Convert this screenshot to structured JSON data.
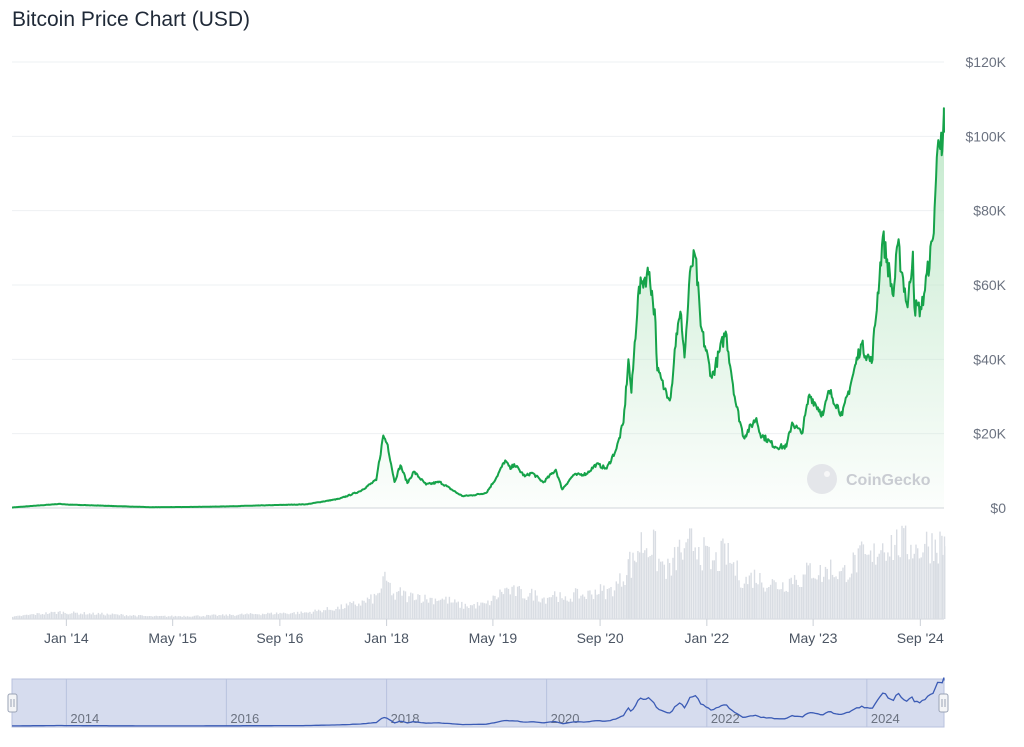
{
  "header": {
    "title": "Bitcoin Price Chart (USD)"
  },
  "watermark": "CoinGecko",
  "colors": {
    "line": "#16a34a",
    "area_top": "#bfe8c9",
    "volume": "#d9dde3",
    "navigator_fill": "#d6dcee",
    "navigator_line": "#3b5bb5"
  },
  "chart_data": {
    "type": "line",
    "title": "Bitcoin Price Chart (USD)",
    "xlabel": "",
    "ylabel": "",
    "ylim": [
      0,
      120000
    ],
    "yticks": [
      "$0",
      "$20K",
      "$40K",
      "$60K",
      "$80K",
      "$100K",
      "$120K"
    ],
    "ytick_values": [
      0,
      20000,
      40000,
      60000,
      80000,
      100000,
      120000
    ],
    "xticks": [
      "Jan '14",
      "May '15",
      "Sep '16",
      "Jan '18",
      "May '19",
      "Sep '20",
      "Jan '22",
      "May '23",
      "Sep '24"
    ],
    "xtick_dates": [
      "2014-01-01",
      "2015-05-01",
      "2016-09-01",
      "2018-01-01",
      "2019-05-01",
      "2020-09-01",
      "2022-01-01",
      "2023-05-01",
      "2024-09-01"
    ],
    "xlim": [
      "2013-04-28",
      "2024-12-18"
    ],
    "grid": true,
    "series": [
      {
        "values": [
          [
            "2013-04-28",
            135
          ],
          [
            "2013-11-30",
            1100
          ],
          [
            "2014-01-15",
            900
          ],
          [
            "2014-06-01",
            650
          ],
          [
            "2015-01-15",
            220
          ],
          [
            "2015-08-01",
            280
          ],
          [
            "2016-01-01",
            430
          ],
          [
            "2016-06-15",
            700
          ],
          [
            "2017-01-01",
            1000
          ],
          [
            "2017-06-01",
            2500
          ],
          [
            "2017-09-01",
            4500
          ],
          [
            "2017-11-15",
            7500
          ],
          [
            "2017-12-17",
            19500
          ],
          [
            "2018-01-06",
            17000
          ],
          [
            "2018-02-06",
            7000
          ],
          [
            "2018-03-05",
            11500
          ],
          [
            "2018-04-06",
            6700
          ],
          [
            "2018-05-05",
            9800
          ],
          [
            "2018-06-30",
            6300
          ],
          [
            "2018-09-01",
            7000
          ],
          [
            "2018-11-25",
            3800
          ],
          [
            "2018-12-15",
            3200
          ],
          [
            "2019-02-01",
            3450
          ],
          [
            "2019-04-01",
            4100
          ],
          [
            "2019-05-15",
            8000
          ],
          [
            "2019-06-26",
            12800
          ],
          [
            "2019-07-20",
            10500
          ],
          [
            "2019-08-06",
            11800
          ],
          [
            "2019-09-24",
            8500
          ],
          [
            "2019-10-26",
            9500
          ],
          [
            "2019-12-17",
            6900
          ],
          [
            "2020-02-12",
            10300
          ],
          [
            "2020-03-12",
            5000
          ],
          [
            "2020-05-01",
            8800
          ],
          [
            "2020-07-01",
            9200
          ],
          [
            "2020-08-15",
            11800
          ],
          [
            "2020-10-01",
            10600
          ],
          [
            "2020-11-15",
            16000
          ],
          [
            "2020-12-17",
            23000
          ],
          [
            "2021-01-08",
            40000
          ],
          [
            "2021-01-22",
            31000
          ],
          [
            "2021-02-21",
            57000
          ],
          [
            "2021-03-13",
            61000
          ],
          [
            "2021-04-14",
            63500
          ],
          [
            "2021-05-12",
            50000
          ],
          [
            "2021-05-20",
            37000
          ],
          [
            "2021-06-22",
            32000
          ],
          [
            "2021-07-20",
            29800
          ],
          [
            "2021-08-15",
            47000
          ],
          [
            "2021-09-06",
            52000
          ],
          [
            "2021-09-21",
            40500
          ],
          [
            "2021-10-20",
            65000
          ],
          [
            "2021-11-10",
            67600
          ],
          [
            "2021-12-04",
            49000
          ],
          [
            "2022-01-24",
            35000
          ],
          [
            "2022-03-28",
            47500
          ],
          [
            "2022-05-12",
            28500
          ],
          [
            "2022-06-18",
            19000
          ],
          [
            "2022-08-15",
            24200
          ],
          [
            "2022-09-01",
            20000
          ],
          [
            "2022-11-09",
            16500
          ],
          [
            "2022-12-30",
            16500
          ],
          [
            "2023-01-25",
            23000
          ],
          [
            "2023-03-10",
            20000
          ],
          [
            "2023-04-14",
            30500
          ],
          [
            "2023-06-15",
            25000
          ],
          [
            "2023-07-13",
            31500
          ],
          [
            "2023-09-11",
            25000
          ],
          [
            "2023-10-24",
            34500
          ],
          [
            "2023-12-05",
            44000
          ],
          [
            "2024-01-23",
            39000
          ],
          [
            "2024-03-14",
            73000
          ],
          [
            "2024-05-01",
            57000
          ],
          [
            "2024-05-21",
            71000
          ],
          [
            "2024-07-05",
            54000
          ],
          [
            "2024-07-29",
            69000
          ],
          [
            "2024-08-05",
            54000
          ],
          [
            "2024-09-06",
            53500
          ],
          [
            "2024-10-29",
            72500
          ],
          [
            "2024-11-12",
            89000
          ],
          [
            "2024-11-22",
            99000
          ],
          [
            "2024-12-05",
            101000
          ],
          [
            "2024-12-10",
            96000
          ],
          [
            "2024-12-17",
            106000
          ],
          [
            "2024-12-18",
            101000
          ]
        ]
      }
    ],
    "navigator": {
      "xticks": [
        "2014",
        "2016",
        "2018",
        "2020",
        "2022",
        "2024"
      ],
      "xtick_dates": [
        "2014-01-01",
        "2016-01-01",
        "2018-01-01",
        "2020-01-01",
        "2022-01-01",
        "2024-01-01"
      ]
    }
  }
}
